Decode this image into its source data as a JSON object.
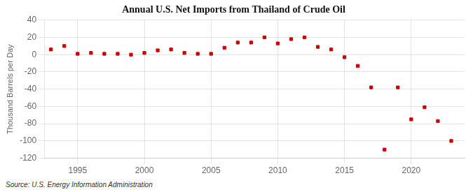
{
  "chart_data": {
    "type": "scatter",
    "title": "Annual U.S. Net Imports from Thailand of Crude Oil",
    "ylabel": "Thousand Barrels per Day",
    "annotation": "Source: U.S. Energy Information Administration",
    "x": [
      1993,
      1994,
      1995,
      1996,
      1997,
      1998,
      1999,
      2000,
      2001,
      2002,
      2003,
      2004,
      2005,
      2006,
      2007,
      2008,
      2009,
      2010,
      2011,
      2012,
      2013,
      2014,
      2015,
      2016,
      2017,
      2018,
      2019,
      2020,
      2021,
      2022,
      2023
    ],
    "values": [
      6,
      10,
      1,
      2,
      1,
      1,
      0,
      2,
      5,
      6,
      2,
      1,
      1,
      8,
      14,
      14,
      20,
      13,
      18,
      20,
      9,
      6,
      -3,
      -13,
      -38,
      -110,
      -38,
      -75,
      -61,
      -77,
      -100
    ],
    "color": "#cc0000",
    "marker": "square",
    "xlim": [
      1992.5,
      2024
    ],
    "ylim": [
      -120,
      40
    ],
    "xticks": [
      1995,
      2000,
      2005,
      2010,
      2015,
      2020
    ],
    "yticks": [
      -120,
      -100,
      -80,
      -60,
      -40,
      -20,
      0,
      20,
      40
    ],
    "grid": true
  }
}
